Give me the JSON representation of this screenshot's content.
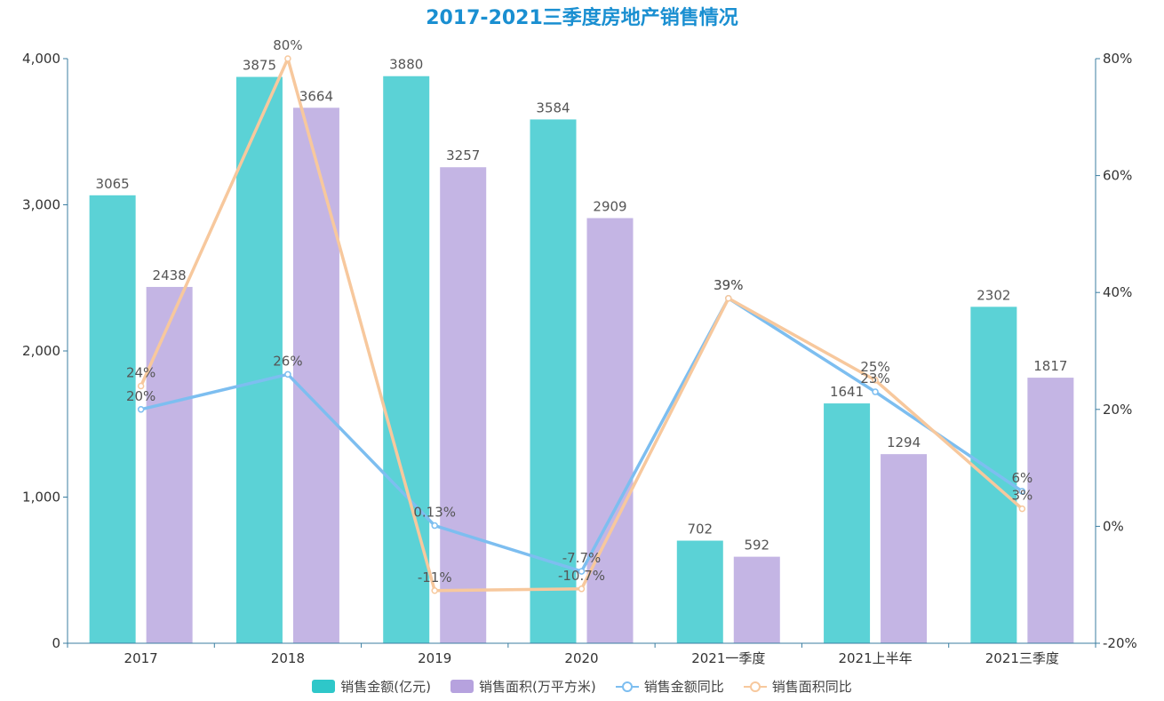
{
  "chart_data": {
    "type": "bar",
    "title": "2017-2021三季度房地产销售情况",
    "categories": [
      "2017",
      "2018",
      "2019",
      "2020",
      "2021一季度",
      "2021上半年",
      "2021三季度"
    ],
    "ylim": [
      0,
      4000
    ],
    "y_ticks": [
      "0",
      "1,000",
      "2,000",
      "3,000",
      "4,000"
    ],
    "y2lim": [
      -20,
      80
    ],
    "y2_ticks": [
      "-20%",
      "0%",
      "20%",
      "40%",
      "60%",
      "80%"
    ],
    "legend_position": "bottom",
    "series": [
      {
        "name": "销售金额(亿元)",
        "kind": "bar",
        "axis": "left",
        "color": "#5bd2d6",
        "values": [
          3065,
          3875,
          3880,
          3584,
          702,
          1641,
          2302
        ],
        "labels": [
          "3065",
          "3875",
          "3880",
          "3584",
          "702",
          "1641",
          "2302"
        ]
      },
      {
        "name": "销售面积(万平方米)",
        "kind": "bar",
        "axis": "left",
        "color": "#c4b5e4",
        "values": [
          2438,
          3664,
          3257,
          2909,
          592,
          1294,
          1817
        ],
        "labels": [
          "2438",
          "3664",
          "3257",
          "2909",
          "592",
          "1294",
          "1817"
        ]
      },
      {
        "name": "销售金额同比",
        "kind": "line",
        "axis": "right",
        "color": "#7dbef0",
        "values": [
          20,
          26,
          0.13,
          -7.7,
          39,
          23,
          6
        ],
        "labels": [
          "20%",
          "26%",
          "0.13%",
          "-7.7%",
          "39%",
          "23%",
          "6%"
        ]
      },
      {
        "name": "销售面积同比",
        "kind": "line",
        "axis": "right",
        "color": "#f7c89d",
        "values": [
          24,
          80,
          -11,
          -10.7,
          39,
          25,
          3
        ],
        "labels": [
          "24%",
          "80%",
          "-11%",
          "-10.7%",
          "39%",
          "25%",
          "3%"
        ]
      }
    ]
  }
}
